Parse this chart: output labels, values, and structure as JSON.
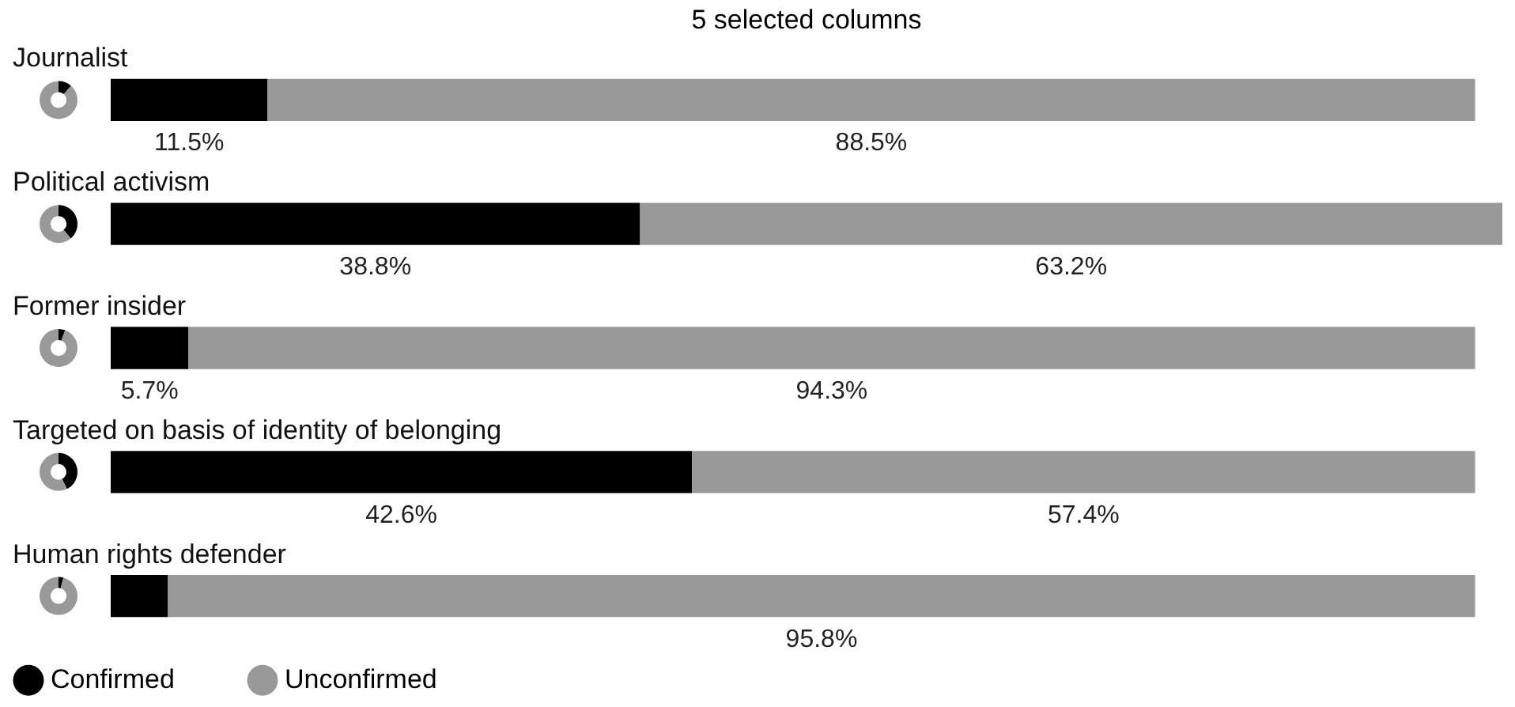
{
  "chart_data": {
    "type": "bar",
    "orientation": "horizontal",
    "stacked": true,
    "title": "5 selected columns",
    "legend": "bottom left",
    "categories": [
      "Journalist",
      "Political activism",
      "Former insider",
      "Targeted on basis of identity of belonging",
      "Human rights defender"
    ],
    "series": [
      {
        "name": "Confirmed",
        "color": "#000000",
        "values": [
          11.5,
          38.8,
          5.7,
          42.6,
          4.2
        ],
        "value_labels": [
          "11.5%",
          "38.8%",
          "5.7%",
          "42.6%",
          null
        ]
      },
      {
        "name": "Unconfirmed",
        "color": "#999999",
        "values": [
          88.5,
          63.2,
          94.3,
          57.4,
          95.8
        ],
        "value_labels": [
          "88.5%",
          "63.2%",
          "94.3%",
          "57.4%",
          "95.8%"
        ]
      }
    ]
  }
}
